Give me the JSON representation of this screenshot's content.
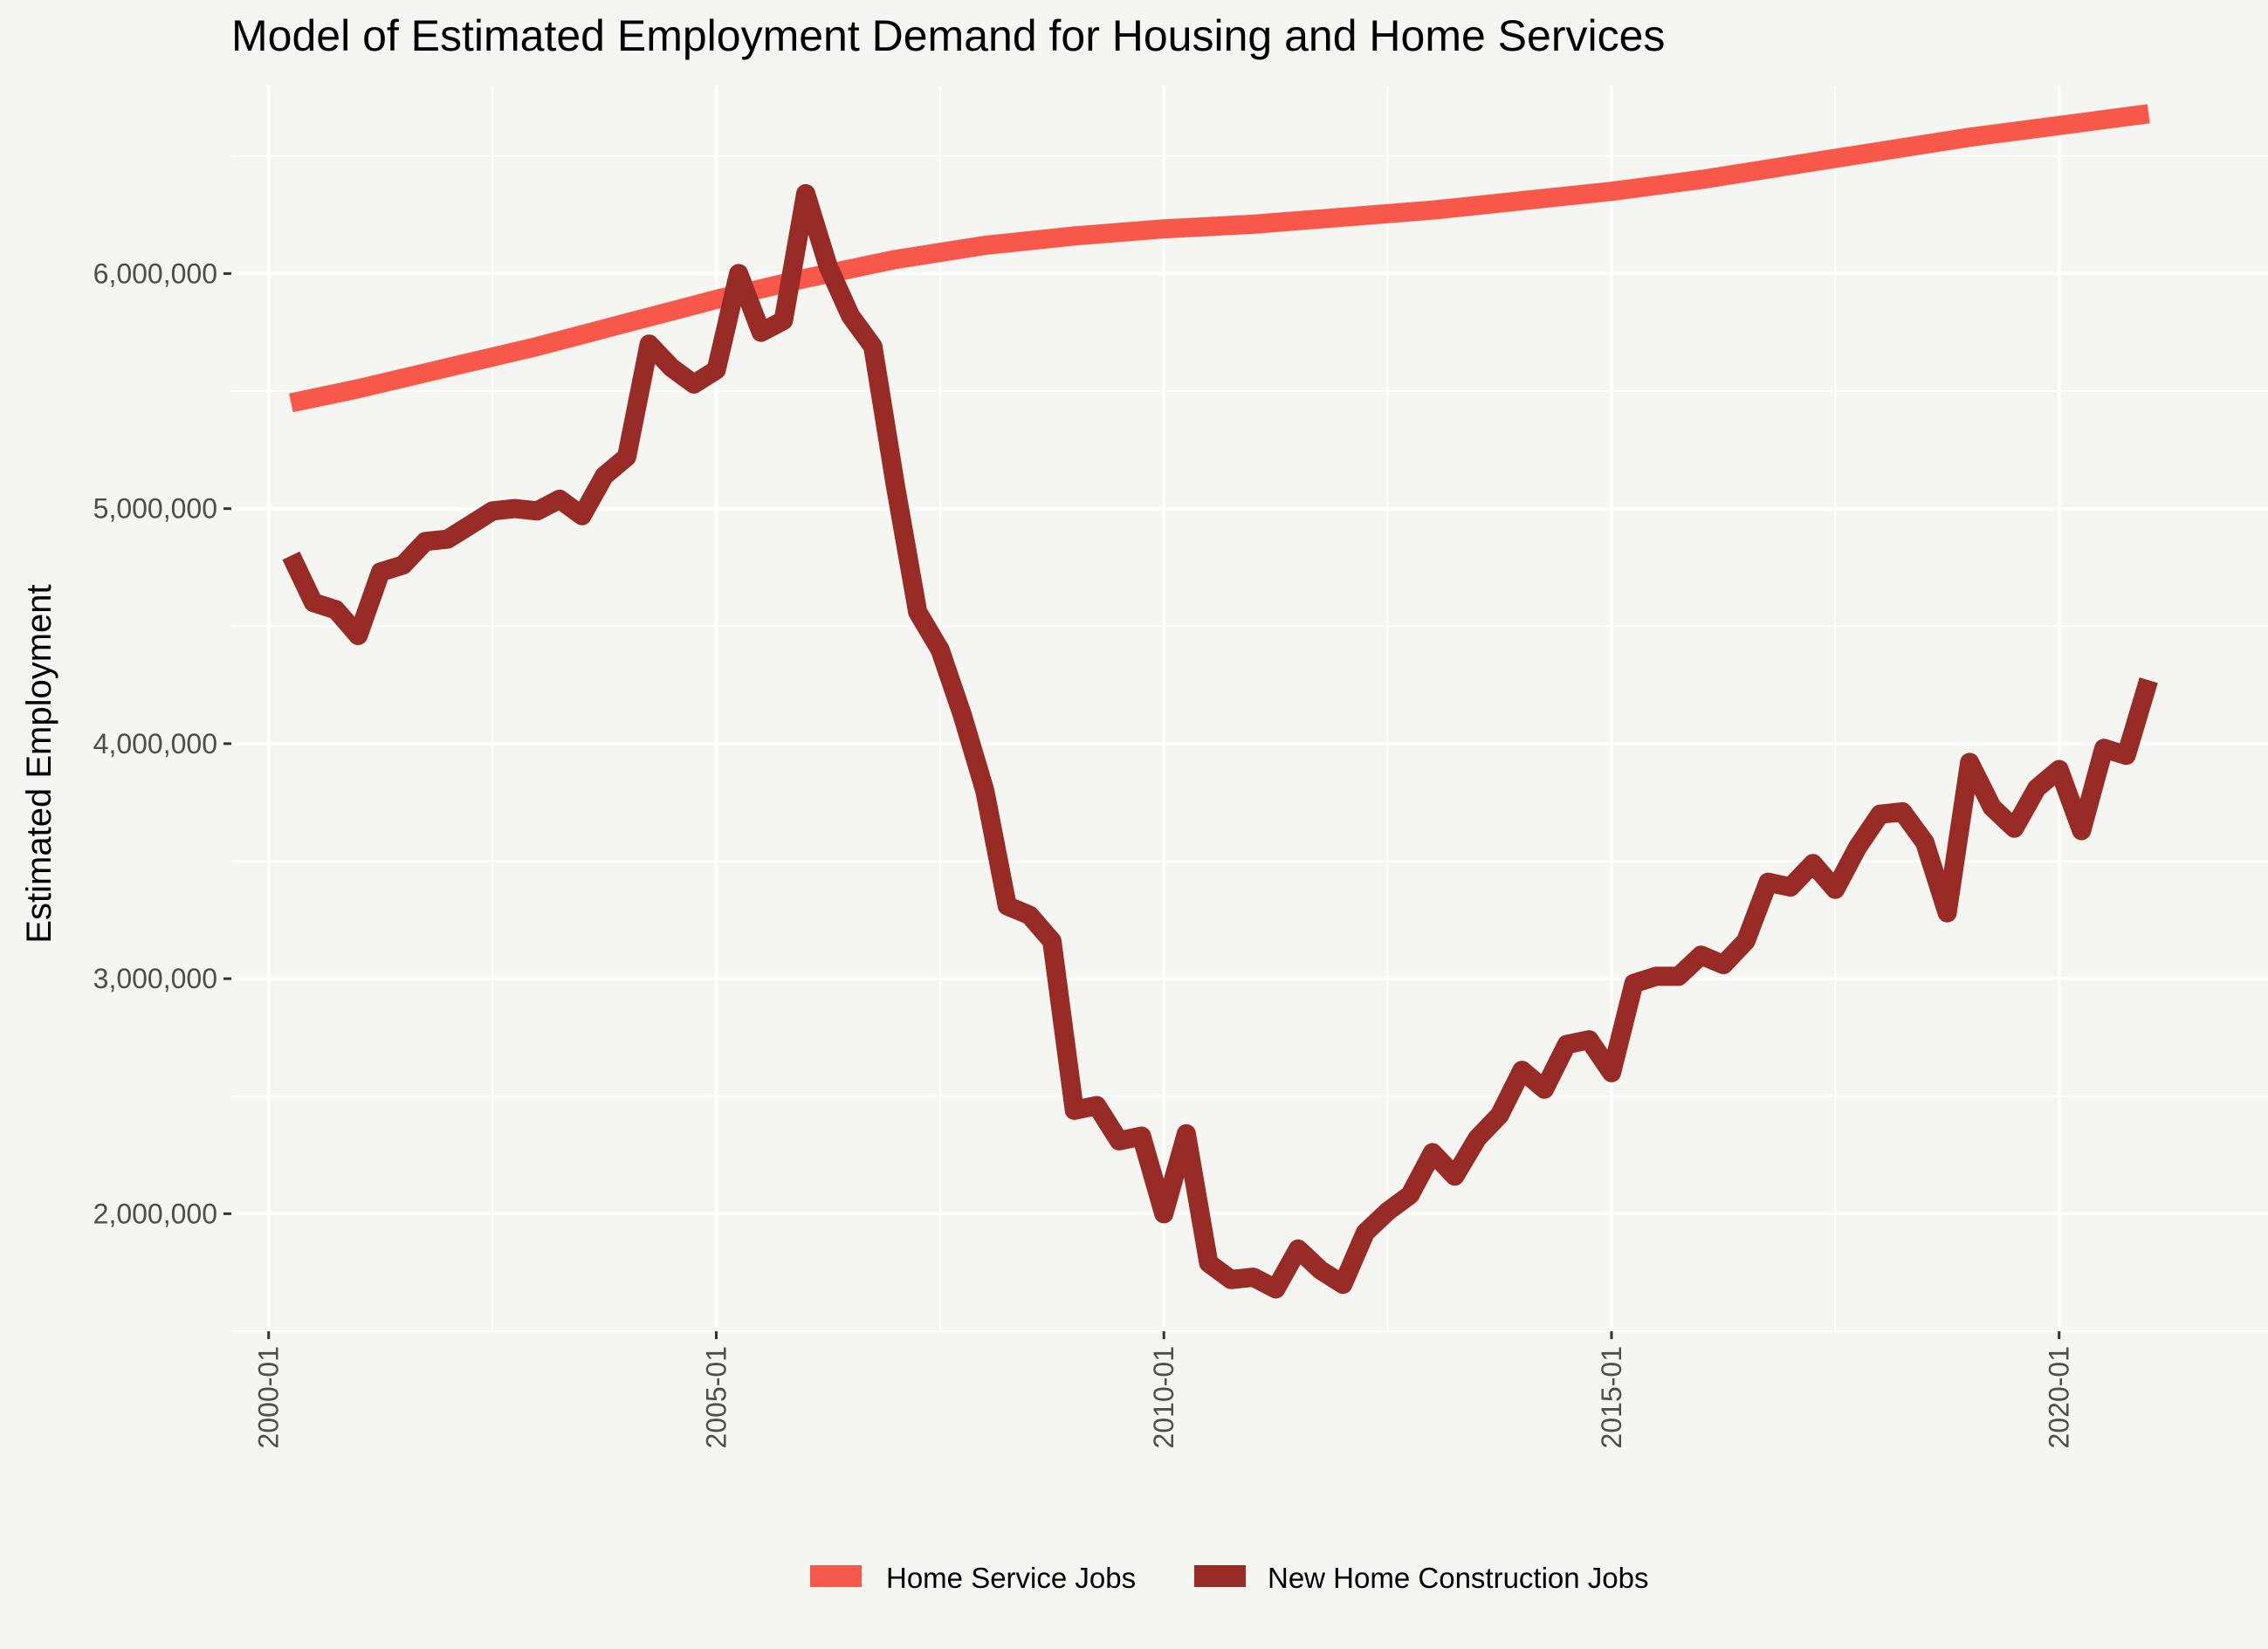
{
  "chart_data": {
    "type": "line",
    "title": "Model of Estimated Employment Demand for Housing and Home Services",
    "xlabel": "",
    "ylabel": "Estimated Employment",
    "x_range": [
      "1999-08",
      "2022-05"
    ],
    "ylim": [
      1500000,
      6800000
    ],
    "x_ticks": [
      {
        "label": "2000-01",
        "value": "2000-01"
      },
      {
        "label": "2005-01",
        "value": "2005-01"
      },
      {
        "label": "2010-01",
        "value": "2010-01"
      },
      {
        "label": "2015-01",
        "value": "2015-01"
      },
      {
        "label": "2020-01",
        "value": "2020-01"
      }
    ],
    "y_ticks": [
      {
        "label": "2,000,000",
        "value": 2000000
      },
      {
        "label": "3,000,000",
        "value": 3000000
      },
      {
        "label": "4,000,000",
        "value": 4000000
      },
      {
        "label": "5,000,000",
        "value": 5000000
      },
      {
        "label": "6,000,000",
        "value": 6000000
      }
    ],
    "grid": true,
    "legend_position": "bottom",
    "series": [
      {
        "name": "Home Service Jobs",
        "color": "#f8584a",
        "points": [
          [
            "2000-04",
            5450000
          ],
          [
            "2001-01",
            5510000
          ],
          [
            "2002-01",
            5600000
          ],
          [
            "2003-01",
            5690000
          ],
          [
            "2004-01",
            5790000
          ],
          [
            "2005-01",
            5890000
          ],
          [
            "2006-01",
            5980000
          ],
          [
            "2007-01",
            6060000
          ],
          [
            "2008-01",
            6120000
          ],
          [
            "2009-01",
            6160000
          ],
          [
            "2010-01",
            6190000
          ],
          [
            "2011-01",
            6210000
          ],
          [
            "2012-01",
            6240000
          ],
          [
            "2013-01",
            6270000
          ],
          [
            "2014-01",
            6310000
          ],
          [
            "2015-01",
            6350000
          ],
          [
            "2016-01",
            6400000
          ],
          [
            "2017-01",
            6460000
          ],
          [
            "2018-01",
            6520000
          ],
          [
            "2019-01",
            6580000
          ],
          [
            "2020-01",
            6630000
          ],
          [
            "2021-01",
            6680000
          ]
        ]
      },
      {
        "name": "New Home Construction Jobs",
        "color": "#982b26",
        "points": [
          [
            "2000-04",
            4800000
          ],
          [
            "2000-07",
            4600000
          ],
          [
            "2000-10",
            4570000
          ],
          [
            "2001-01",
            4460000
          ],
          [
            "2001-04",
            4730000
          ],
          [
            "2001-07",
            4760000
          ],
          [
            "2001-10",
            4860000
          ],
          [
            "2002-01",
            4870000
          ],
          [
            "2002-04",
            4930000
          ],
          [
            "2002-07",
            4990000
          ],
          [
            "2002-10",
            5000000
          ],
          [
            "2003-01",
            4990000
          ],
          [
            "2003-04",
            5040000
          ],
          [
            "2003-07",
            4970000
          ],
          [
            "2003-10",
            5140000
          ],
          [
            "2004-01",
            5220000
          ],
          [
            "2004-04",
            5700000
          ],
          [
            "2004-07",
            5600000
          ],
          [
            "2004-10",
            5530000
          ],
          [
            "2005-01",
            5590000
          ],
          [
            "2005-04",
            6000000
          ],
          [
            "2005-07",
            5750000
          ],
          [
            "2005-10",
            5800000
          ],
          [
            "2006-01",
            6340000
          ],
          [
            "2006-04",
            6030000
          ],
          [
            "2006-07",
            5820000
          ],
          [
            "2006-10",
            5690000
          ],
          [
            "2007-01",
            5100000
          ],
          [
            "2007-04",
            4560000
          ],
          [
            "2007-07",
            4400000
          ],
          [
            "2007-10",
            4120000
          ],
          [
            "2008-01",
            3800000
          ],
          [
            "2008-04",
            3310000
          ],
          [
            "2008-07",
            3270000
          ],
          [
            "2008-10",
            3160000
          ],
          [
            "2009-01",
            2440000
          ],
          [
            "2009-04",
            2460000
          ],
          [
            "2009-07",
            2310000
          ],
          [
            "2009-10",
            2330000
          ],
          [
            "2010-01",
            2000000
          ],
          [
            "2010-04",
            2340000
          ],
          [
            "2010-07",
            1790000
          ],
          [
            "2010-10",
            1720000
          ],
          [
            "2011-01",
            1730000
          ],
          [
            "2011-04",
            1680000
          ],
          [
            "2011-07",
            1850000
          ],
          [
            "2011-10",
            1760000
          ],
          [
            "2012-01",
            1700000
          ],
          [
            "2012-04",
            1920000
          ],
          [
            "2012-07",
            2010000
          ],
          [
            "2012-10",
            2080000
          ],
          [
            "2013-01",
            2260000
          ],
          [
            "2013-04",
            2160000
          ],
          [
            "2013-07",
            2320000
          ],
          [
            "2013-10",
            2420000
          ],
          [
            "2014-01",
            2610000
          ],
          [
            "2014-04",
            2530000
          ],
          [
            "2014-07",
            2720000
          ],
          [
            "2014-10",
            2740000
          ],
          [
            "2015-01",
            2600000
          ],
          [
            "2015-04",
            2980000
          ],
          [
            "2015-07",
            3010000
          ],
          [
            "2015-10",
            3010000
          ],
          [
            "2016-01",
            3100000
          ],
          [
            "2016-04",
            3060000
          ],
          [
            "2016-07",
            3160000
          ],
          [
            "2016-10",
            3410000
          ],
          [
            "2017-01",
            3390000
          ],
          [
            "2017-04",
            3490000
          ],
          [
            "2017-07",
            3380000
          ],
          [
            "2017-10",
            3560000
          ],
          [
            "2018-01",
            3700000
          ],
          [
            "2018-04",
            3710000
          ],
          [
            "2018-07",
            3580000
          ],
          [
            "2018-10",
            3280000
          ],
          [
            "2019-01",
            3920000
          ],
          [
            "2019-04",
            3730000
          ],
          [
            "2019-07",
            3640000
          ],
          [
            "2019-10",
            3810000
          ],
          [
            "2020-01",
            3890000
          ],
          [
            "2020-04",
            3630000
          ],
          [
            "2020-07",
            3980000
          ],
          [
            "2020-10",
            3950000
          ],
          [
            "2021-01",
            4270000
          ]
        ]
      }
    ]
  }
}
